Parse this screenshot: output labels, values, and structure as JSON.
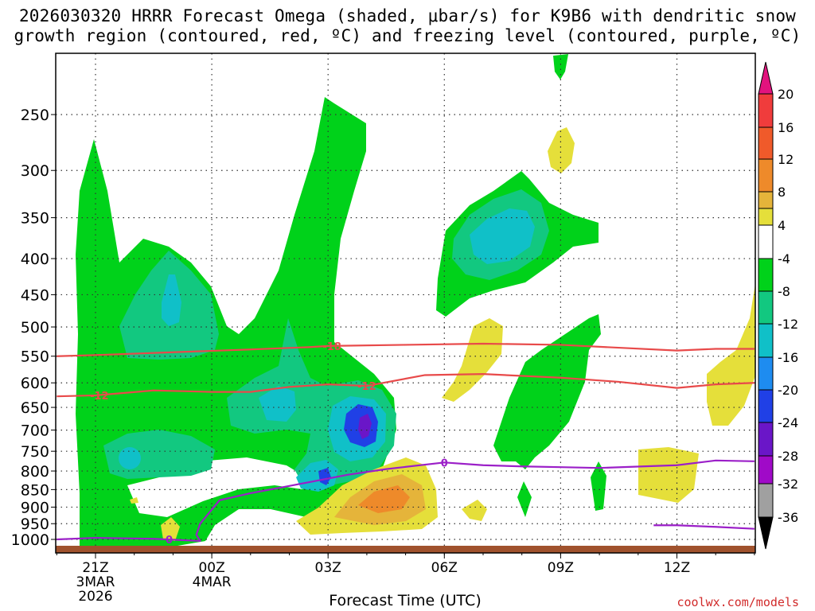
{
  "title": {
    "line1": "2026030320 HRRR Forecast Omega (shaded, μbar/s) for K9B6 with dendritic snow",
    "line2": "growth region (contoured, red, ºC) and freezing level (contoured, purple, ºC)"
  },
  "credit": "coolwx.com/models",
  "chart_data": {
    "type": "heatmap",
    "title": "2026030320 HRRR Forecast Omega (shaded, μbar/s) for K9B6 with dendritic snow growth region (contoured, red, ºC) and freezing level (contoured, purple, ºC)",
    "xlabel": "Forecast Time (UTC)",
    "ylabel": "",
    "x_range_hours": [
      -1,
      17
    ],
    "y_range_hPa": [
      1050,
      200
    ],
    "y_scale": "log",
    "grid": true,
    "x_ticks": [
      {
        "hour": 0,
        "line1": "21Z",
        "line2": "3MAR",
        "line3": "2026"
      },
      {
        "hour": 3,
        "line1": "00Z",
        "line2": "4MAR",
        "line3": ""
      },
      {
        "hour": 6,
        "line1": "03Z",
        "line2": "",
        "line3": ""
      },
      {
        "hour": 9,
        "line1": "06Z",
        "line2": "",
        "line3": ""
      },
      {
        "hour": 12,
        "line1": "09Z",
        "line2": "",
        "line3": ""
      },
      {
        "hour": 15,
        "line1": "12Z",
        "line2": "",
        "line3": ""
      }
    ],
    "y_ticks": [
      250,
      300,
      350,
      400,
      450,
      500,
      550,
      600,
      650,
      700,
      750,
      800,
      850,
      900,
      950,
      1000
    ],
    "colorbar": {
      "labels": [
        "20",
        "16",
        "12",
        "8",
        "4",
        "-4",
        "-8",
        "-12",
        "-16",
        "-20",
        "-24",
        "-28",
        "-32",
        "-36"
      ],
      "bins": [
        {
          "color": "#e2137e",
          "range": ">20"
        },
        {
          "color": "#f03c3c",
          "range": "16 to 20"
        },
        {
          "color": "#f05a2a",
          "range": "12 to 16"
        },
        {
          "color": "#ee8a2a",
          "range": "8 to 12"
        },
        {
          "color": "#e5b43a",
          "range": "4 to 8"
        },
        {
          "color": "#e5df3a",
          "range": "4 to 8 (light)"
        },
        {
          "color": "#ffffff",
          "range": "-4 to 4"
        },
        {
          "color": "#00d21a",
          "range": "-8 to -4"
        },
        {
          "color": "#12c880",
          "range": "-12 to -8"
        },
        {
          "color": "#10c0c8",
          "range": "-16 to -12"
        },
        {
          "color": "#1e8cf0",
          "range": "-20 to -16"
        },
        {
          "color": "#2040e6",
          "range": "-24 to -20"
        },
        {
          "color": "#6a16c8",
          "range": "-28 to -24"
        },
        {
          "color": "#a00ac8",
          "range": "-32 to -28"
        },
        {
          "color": "#a0a0a0",
          "range": "-36 to -32"
        },
        {
          "color": "#000000",
          "range": "<-36"
        }
      ]
    },
    "omega_regions": [
      {
        "name": "green-lower-left",
        "value": -6,
        "color": "#00d21a"
      },
      {
        "name": "green-tower",
        "value": -6,
        "color": "#00d21a"
      },
      {
        "name": "teal-core-left",
        "value": -10,
        "color": "#12c880"
      },
      {
        "name": "cyan-core-left",
        "value": -14,
        "color": "#10c0c8"
      },
      {
        "name": "blue-core-03z",
        "value": -22,
        "color": "#2040e6"
      },
      {
        "name": "purple-core-03z",
        "value": -26,
        "color": "#6a16c8"
      },
      {
        "name": "green-cloud-06z",
        "value": -6,
        "color": "#00d21a"
      },
      {
        "name": "cyan-core-06z",
        "value": -14,
        "color": "#10c0c8"
      },
      {
        "name": "yellow-low-04z",
        "value": 6,
        "color": "#e5df3a"
      },
      {
        "name": "orange-low-04z",
        "value": 10,
        "color": "#ee8a2a"
      },
      {
        "name": "yellow-09z-top",
        "value": 6,
        "color": "#e5df3a"
      },
      {
        "name": "yellow-12z-low",
        "value": 6,
        "color": "#e5df3a"
      },
      {
        "name": "green-09z",
        "value": -6,
        "color": "#00d21a"
      }
    ],
    "contours": [
      {
        "name": "-18",
        "color": "#e84a4a",
        "label": "-18",
        "points": [
          [
            -1,
            550
          ],
          [
            0,
            548
          ],
          [
            2,
            543
          ],
          [
            4,
            538
          ],
          [
            5.5,
            534
          ],
          [
            6,
            532
          ],
          [
            8,
            530
          ],
          [
            10,
            528
          ],
          [
            12,
            530
          ],
          [
            13.5,
            535
          ],
          [
            15,
            540
          ],
          [
            16,
            537
          ],
          [
            17,
            537
          ]
        ]
      },
      {
        "name": "-12",
        "color": "#e84a4a",
        "label": "-12",
        "points": [
          [
            -1,
            627
          ],
          [
            0,
            625
          ],
          [
            1.5,
            615
          ],
          [
            3,
            618
          ],
          [
            4,
            618
          ],
          [
            5,
            608
          ],
          [
            6,
            603
          ],
          [
            7,
            606
          ],
          [
            8.5,
            585
          ],
          [
            10,
            583
          ],
          [
            12,
            590
          ],
          [
            13.5,
            598
          ],
          [
            15,
            610
          ],
          [
            16,
            603
          ],
          [
            17,
            600
          ]
        ]
      },
      {
        "name": "0",
        "color": "#9b1fc8",
        "label": "0",
        "points": [
          [
            -1,
            1000
          ],
          [
            0,
            995
          ],
          [
            1.5,
            998
          ],
          [
            2.7,
            1005
          ],
          [
            2.6,
            985
          ],
          [
            2.7,
            950
          ],
          [
            3.2,
            880
          ],
          [
            4,
            860
          ],
          [
            5,
            840
          ],
          [
            6.5,
            810
          ],
          [
            7.5,
            795
          ],
          [
            9,
            778
          ],
          [
            10,
            785
          ],
          [
            11,
            788
          ],
          [
            12,
            790
          ],
          [
            13,
            792
          ],
          [
            15,
            785
          ],
          [
            16,
            773
          ],
          [
            17,
            775
          ]
        ]
      },
      {
        "name": "0-lower",
        "color": "#9b1fc8",
        "label": "",
        "points": [
          [
            14.4,
            955
          ],
          [
            15,
            955
          ],
          [
            16,
            960
          ],
          [
            17,
            966
          ]
        ]
      }
    ],
    "annotations": [
      "-18",
      "-12",
      "0"
    ]
  }
}
